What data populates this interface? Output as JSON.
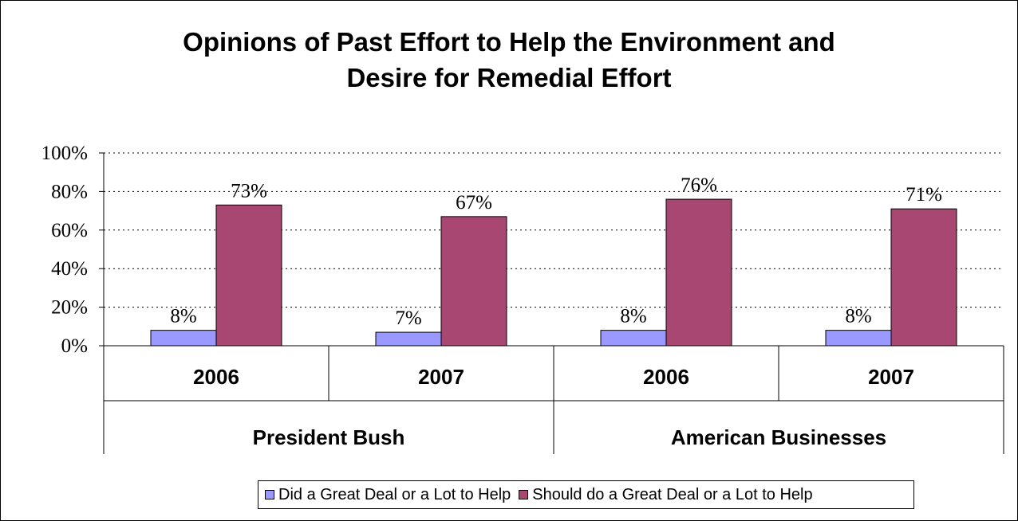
{
  "chart_data": {
    "type": "bar",
    "title": "Opinions of Past Effort to Help the Environment and Desire for Remedial Effort",
    "title_lines": [
      "Opinions of Past Effort to Help the Environment and",
      "Desire for Remedial Effort"
    ],
    "groups": [
      {
        "label": "President Bush",
        "categories": [
          "2006",
          "2007"
        ]
      },
      {
        "label": "American Businesses",
        "categories": [
          "2006",
          "2007"
        ]
      }
    ],
    "categories": [
      "2006",
      "2007",
      "2006",
      "2007"
    ],
    "series": [
      {
        "name": "Did a Great Deal or a Lot to Help",
        "values": [
          8,
          7,
          8,
          8
        ],
        "labels": [
          "8%",
          "7%",
          "8%",
          "8%"
        ],
        "color": "#9999FF"
      },
      {
        "name": "Should do a Great Deal or a Lot to Help",
        "values": [
          73,
          67,
          76,
          71
        ],
        "labels": [
          "73%",
          "67%",
          "76%",
          "71%"
        ],
        "color": "#A84872"
      }
    ],
    "ylim": [
      0,
      100
    ],
    "yticks": [
      "0%",
      "20%",
      "40%",
      "60%",
      "80%",
      "100%"
    ],
    "xlabel": "",
    "ylabel": "",
    "grid": "dotted horizontal",
    "legend_position": "bottom"
  }
}
